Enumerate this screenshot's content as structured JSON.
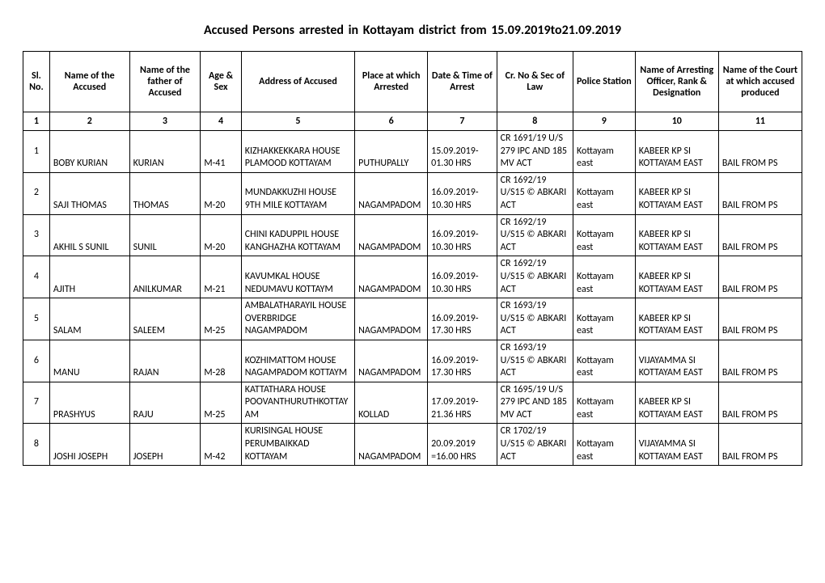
{
  "title": "Accused Persons arrested in   Kottayam   district from   15.09.2019to21.09.2019",
  "headers": [
    "Sl. No.",
    "Name of the Accused",
    "Name of the father of Accused",
    "Age & Sex",
    "Address of Accused",
    "Place at which Arrested",
    "Date & Time of Arrest",
    "Cr. No & Sec of Law",
    "Police Station",
    "Name of Arresting Officer, Rank & Designation",
    "Name of the Court at which accused produced"
  ],
  "numrow": [
    "1",
    "2",
    "3",
    "4",
    "5",
    "6",
    "7",
    "8",
    "9",
    "10",
    "11"
  ],
  "rows": [
    {
      "sl": "1",
      "name": "BOBY KURIAN",
      "father": "KURIAN",
      "age": "M-41",
      "address": "KIZHAKKEKKARA HOUSE  PLAMOOD KOTTAYAM",
      "place": "PUTHUPALLY",
      "datetime": "15.09.2019-01.30 HRS",
      "crno": "CR 1691/19 U/S 279 IPC AND 185 MV ACT",
      "station": "Kottayam east",
      "officer": "KABEER KP SI KOTTAYAM EAST",
      "court": "BAIL FROM PS"
    },
    {
      "sl": "2",
      "name": "SAJI THOMAS",
      "father": "THOMAS",
      "age": "M-20",
      "address": "MUNDAKKUZHI HOUSE 9TH MILE KOTTAYAM",
      "place": "NAGAMPADOM",
      "datetime": "16.09.2019-10.30 HRS",
      "crno": "CR 1692/19 U/S15 © ABKARI ACT",
      "station": "Kottayam east",
      "officer": "KABEER KP SI KOTTAYAM EAST",
      "court": "BAIL FROM PS"
    },
    {
      "sl": "3",
      "name": "AKHIL S SUNIL",
      "father": "SUNIL",
      "age": "M-20",
      "address": "CHINI KADUPPIL HOUSE KANGHAZHA KOTTAYAM",
      "place": "NAGAMPADOM",
      "datetime": "16.09.2019-10.30 HRS",
      "crno": "CR 1692/19 U/S15 © ABKARI ACT",
      "station": "Kottayam east",
      "officer": "KABEER KP SI KOTTAYAM EAST",
      "court": "BAIL FROM PS"
    },
    {
      "sl": "4",
      "name": "AJITH",
      "father": "ANILKUMAR",
      "age": "M-21",
      "address": "KAVUMKAL  HOUSE NEDUMAVU KOTTAYM",
      "place": "NAGAMPADOM",
      "datetime": "16.09.2019-10.30 HRS",
      "crno": "CR 1692/19 U/S15 © ABKARI ACT",
      "station": "Kottayam east",
      "officer": "KABEER KP SI KOTTAYAM EAST",
      "court": "BAIL FROM PS"
    },
    {
      "sl": "5",
      "name": "SALAM",
      "father": "SALEEM",
      "age": "M-25",
      "address": "AMBALATHARAYIL HOUSE OVERBRIDGE NAGAMPADOM",
      "place": "NAGAMPADOM",
      "datetime": "16.09.2019-17.30 HRS",
      "crno": "CR 1693/19 U/S15 © ABKARI ACT",
      "station": "Kottayam east",
      "officer": "KABEER KP SI KOTTAYAM EAST",
      "court": "BAIL FROM PS"
    },
    {
      "sl": "6",
      "name": "MANU",
      "father": "RAJAN",
      "age": "M-28",
      "address": "KOZHIMATTOM HOUSE NAGAMPADOM KOTTAYM",
      "place": "NAGAMPADOM",
      "datetime": "16.09.2019-17.30 HRS",
      "crno": "CR 1693/19 U/S15 © ABKARI ACT",
      "station": "Kottayam east",
      "officer": "VIJAYAMMA SI KOTTAYAM EAST",
      "court": "BAIL FROM PS"
    },
    {
      "sl": "7",
      "name": "PRASHYUS",
      "father": "RAJU",
      "age": "M-25",
      "address": "KATTATHARA HOUSE POOVANTHURUTHKOTTAYAM",
      "place": "KOLLAD",
      "datetime": "17.09.2019-21.36 HRS",
      "crno": "CR 1695/19 U/S 279 IPC AND 185 MV ACT",
      "station": "Kottayam east",
      "officer": "KABEER KP SI KOTTAYAM EAST",
      "court": "BAIL FROM PS"
    },
    {
      "sl": "8",
      "name": "JOSHI JOSEPH",
      "father": "JOSEPH",
      "age": "M-42",
      "address": "KURISINGAL HOUSE PERUMBAIKKAD KOTTAYAM",
      "place": "NAGAMPADOM",
      "datetime": "20.09.2019 =16.00 HRS",
      "crno": "CR 1702/19 U/S15 © ABKARI ACT",
      "station": "Kottayam east",
      "officer": "VIJAYAMMA SI KOTTAYAM EAST",
      "court": "BAIL FROM PS"
    }
  ]
}
